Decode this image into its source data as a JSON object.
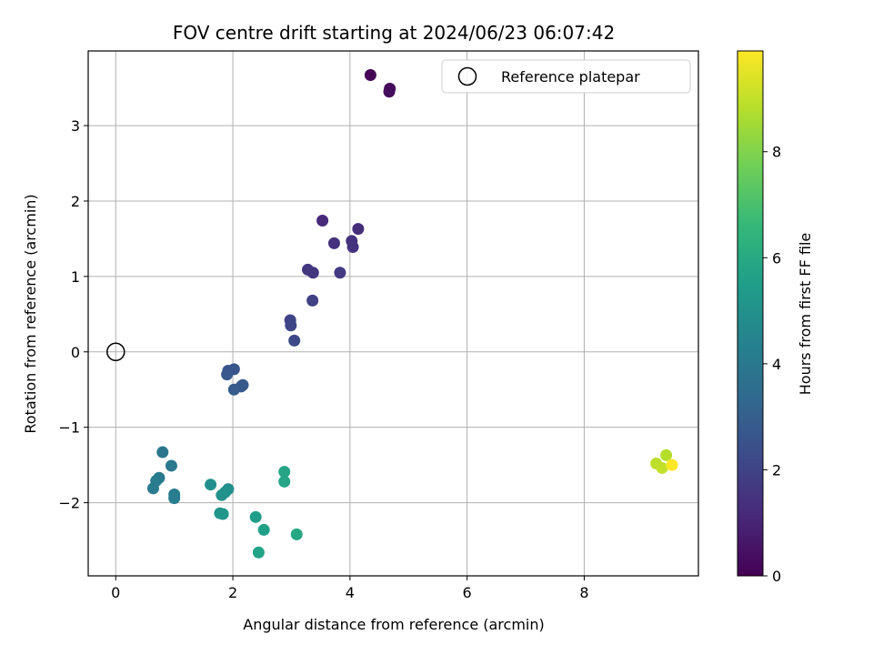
{
  "chart_data": {
    "type": "scatter",
    "title": "FOV centre drift starting at 2024/06/23 06:07:42",
    "xlabel": "Angular distance from reference (arcmin)",
    "ylabel": "Rotation from reference (arcmin)",
    "xlim": [
      -0.47,
      9.95
    ],
    "ylim": [
      -2.97,
      3.99
    ],
    "xticks": [
      0,
      2,
      4,
      6,
      8
    ],
    "yticks": [
      -2,
      -1,
      0,
      1,
      2,
      3
    ],
    "ytick_labels": [
      "−2",
      "−1",
      "0",
      "1",
      "2",
      "3"
    ],
    "grid": true,
    "legend": {
      "placement": "upper-right",
      "entries": [
        "Reference platepar"
      ]
    },
    "reference": {
      "name": "Reference platepar",
      "x": 0,
      "y": 0,
      "marker": "open-circle"
    },
    "colorbar": {
      "label": "Hours from first FF file",
      "range": [
        0,
        9.9
      ],
      "ticks": [
        0,
        2,
        4,
        6,
        8
      ],
      "colormap": "viridis",
      "colors": [
        "#440154",
        "#482878",
        "#3e4989",
        "#31688e",
        "#26828e",
        "#1f9e89",
        "#35b779",
        "#6ece58",
        "#b5de2b",
        "#fde725"
      ]
    },
    "points": [
      {
        "x": 4.35,
        "y": 3.67,
        "hours": 0.1
      },
      {
        "x": 4.68,
        "y": 3.49,
        "hours": 0.2
      },
      {
        "x": 4.67,
        "y": 3.45,
        "hours": 0.3
      },
      {
        "x": 3.53,
        "y": 1.74,
        "hours": 1.2
      },
      {
        "x": 4.14,
        "y": 1.63,
        "hours": 1.3
      },
      {
        "x": 4.03,
        "y": 1.47,
        "hours": 1.4
      },
      {
        "x": 3.73,
        "y": 1.44,
        "hours": 1.4
      },
      {
        "x": 4.05,
        "y": 1.39,
        "hours": 1.5
      },
      {
        "x": 3.28,
        "y": 1.09,
        "hours": 1.6
      },
      {
        "x": 3.37,
        "y": 1.05,
        "hours": 1.6
      },
      {
        "x": 3.83,
        "y": 1.05,
        "hours": 1.7
      },
      {
        "x": 3.36,
        "y": 0.68,
        "hours": 1.9
      },
      {
        "x": 2.98,
        "y": 0.42,
        "hours": 2.0
      },
      {
        "x": 2.99,
        "y": 0.35,
        "hours": 2.1
      },
      {
        "x": 3.05,
        "y": 0.15,
        "hours": 2.2
      },
      {
        "x": 1.92,
        "y": -0.25,
        "hours": 2.6
      },
      {
        "x": 2.02,
        "y": -0.23,
        "hours": 2.6
      },
      {
        "x": 1.9,
        "y": -0.3,
        "hours": 2.7
      },
      {
        "x": 2.17,
        "y": -0.44,
        "hours": 2.8
      },
      {
        "x": 2.14,
        "y": -0.46,
        "hours": 2.8
      },
      {
        "x": 2.02,
        "y": -0.5,
        "hours": 2.9
      },
      {
        "x": 0.8,
        "y": -1.33,
        "hours": 3.9
      },
      {
        "x": 0.95,
        "y": -1.51,
        "hours": 4.0
      },
      {
        "x": 0.74,
        "y": -1.67,
        "hours": 4.0
      },
      {
        "x": 0.69,
        "y": -1.71,
        "hours": 4.1
      },
      {
        "x": 0.64,
        "y": -1.81,
        "hours": 4.1
      },
      {
        "x": 1.0,
        "y": -1.89,
        "hours": 4.2
      },
      {
        "x": 1.0,
        "y": -1.94,
        "hours": 4.2
      },
      {
        "x": 1.62,
        "y": -1.76,
        "hours": 4.9
      },
      {
        "x": 1.92,
        "y": -1.82,
        "hours": 4.9
      },
      {
        "x": 1.87,
        "y": -1.86,
        "hours": 5.0
      },
      {
        "x": 1.81,
        "y": -1.9,
        "hours": 5.0
      },
      {
        "x": 1.78,
        "y": -2.14,
        "hours": 5.1
      },
      {
        "x": 1.83,
        "y": -2.15,
        "hours": 5.2
      },
      {
        "x": 2.39,
        "y": -2.19,
        "hours": 5.5
      },
      {
        "x": 2.53,
        "y": -2.36,
        "hours": 5.6
      },
      {
        "x": 2.44,
        "y": -2.66,
        "hours": 5.7
      },
      {
        "x": 2.88,
        "y": -1.59,
        "hours": 5.8
      },
      {
        "x": 2.88,
        "y": -1.72,
        "hours": 5.8
      },
      {
        "x": 3.09,
        "y": -2.42,
        "hours": 5.9
      },
      {
        "x": 9.4,
        "y": -1.37,
        "hours": 8.8
      },
      {
        "x": 9.23,
        "y": -1.48,
        "hours": 8.9
      },
      {
        "x": 9.33,
        "y": -1.54,
        "hours": 9.0
      },
      {
        "x": 9.5,
        "y": -1.5,
        "hours": 9.9
      }
    ]
  }
}
